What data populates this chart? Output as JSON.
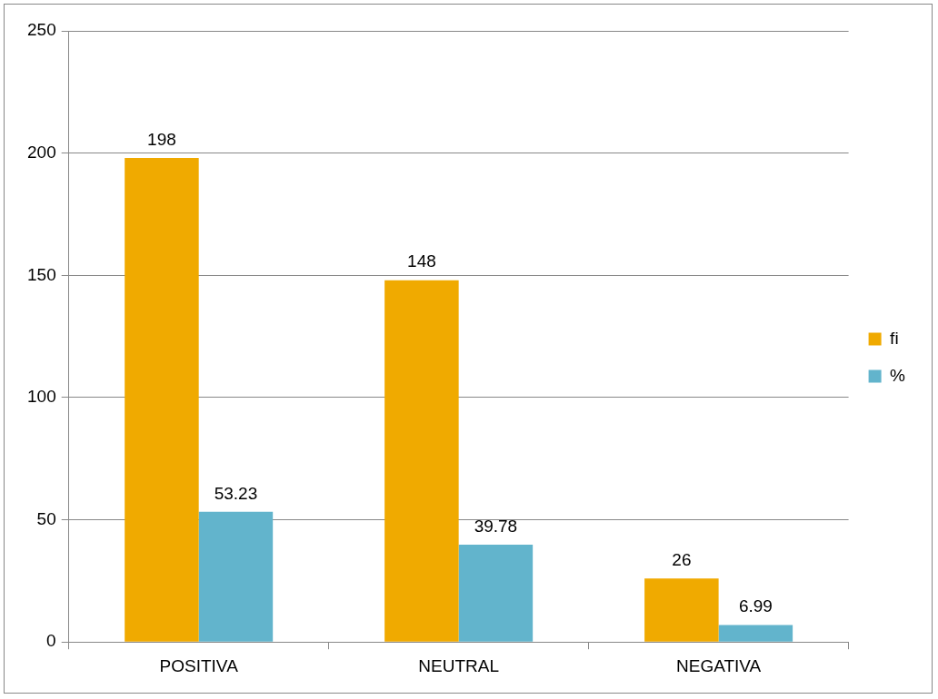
{
  "chart_data": {
    "type": "bar",
    "categories": [
      "POSITIVA",
      "NEUTRAL",
      "NEGATIVA"
    ],
    "series": [
      {
        "name": "fi",
        "color": "#f0aa00",
        "values": [
          198,
          148,
          26
        ]
      },
      {
        "name": "%",
        "color": "#62b4cc",
        "values": [
          53.23,
          39.78,
          6.99
        ]
      }
    ],
    "ylim": [
      0,
      250
    ],
    "yticks": [
      0,
      50,
      100,
      150,
      200,
      250
    ],
    "grid": "y",
    "legend": "right",
    "data_labels": true
  }
}
